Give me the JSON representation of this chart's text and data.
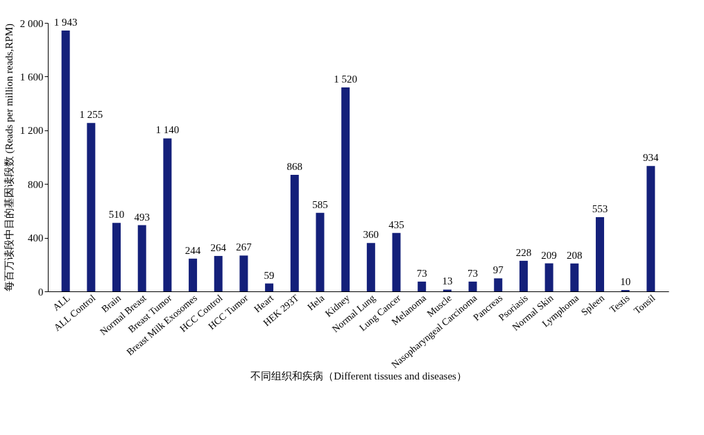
{
  "chart_data": {
    "type": "bar",
    "xlabel": "不同组织和疾病（Different tissues and diseases）",
    "ylabel": "每百万读段中目的基因读段数 (Reads per million reads,RPM)",
    "categories": [
      "ALL",
      "ALL Control",
      "Brain",
      "Normal Breast",
      "Breast Tumor",
      "Breast Milk Exosomes",
      "HCC Control",
      "HCC Tumor",
      "Heart",
      "HEK 293T",
      "Hela",
      "Kidney",
      "Normal Lung",
      "Lung Cancer",
      "Melanoma",
      "Muscle",
      "Nasopharyngeal Carcinoma",
      "Pancreas",
      "Psoriasis",
      "Normal Skin",
      "Lymphoma",
      "Spleen",
      "Testis",
      "Tonsil"
    ],
    "values": [
      1943,
      1255,
      510,
      493,
      1140,
      244,
      264,
      267,
      59,
      868,
      585,
      1520,
      360,
      435,
      73,
      13,
      73,
      97,
      228,
      209,
      208,
      553,
      10,
      934
    ],
    "value_labels": [
      "1 943",
      "1 255",
      "510",
      "493",
      "1 140",
      "244",
      "264",
      "267",
      "59",
      "868",
      "585",
      "1 520",
      "360",
      "435",
      "73",
      "13",
      "73",
      "97",
      "228",
      "209",
      "208",
      "553",
      "10",
      "934"
    ],
    "color": "#14207a",
    "ylim": [
      0,
      2000
    ],
    "yticks": [
      0,
      400,
      800,
      {
        "value": 1200,
        "label": "1 200"
      },
      {
        "value": 1600,
        "label": "1 600"
      },
      {
        "value": 2000,
        "label": "2 000"
      }
    ],
    "grid": false
  }
}
